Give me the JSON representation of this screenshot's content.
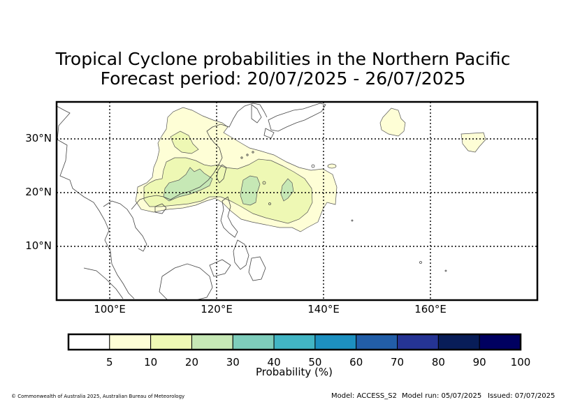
{
  "title_line1": "Tropical Cyclone probabilities in the Northern Pacific",
  "title_line2": "Forecast period: 20/07/2025 - 26/07/2025",
  "map": {
    "lon_range": [
      90,
      180
    ],
    "lat_range": [
      0,
      37
    ],
    "lon_ticks": [
      {
        "value": 100,
        "label": "100°E"
      },
      {
        "value": 120,
        "label": "120°E"
      },
      {
        "value": 140,
        "label": "140°E"
      },
      {
        "value": 160,
        "label": "160°E"
      }
    ],
    "lat_ticks": [
      {
        "value": 30,
        "label": "30°N"
      },
      {
        "value": 20,
        "label": "20°N"
      },
      {
        "value": 10,
        "label": "10°N"
      }
    ],
    "gridlines": "dotted"
  },
  "colorbar": {
    "label": "Probability (%)",
    "tick_labels": [
      "5",
      "10",
      "20",
      "30",
      "40",
      "50",
      "60",
      "70",
      "80",
      "90",
      "100"
    ],
    "colors": [
      "#ffffff",
      "#fefed6",
      "#eef8b4",
      "#c6e8b5",
      "#7ecdbb",
      "#42b5c4",
      "#1d90c0",
      "#225ea8",
      "#253494",
      "#081d58",
      "#000060"
    ]
  },
  "probability_regions": [
    {
      "level": "5-10",
      "color": "#fefed6",
      "description": "broad area South China Sea to east of Taiwan, plus small patches near 152°E 33°N and 168°E 29°N"
    },
    {
      "level": "10-20",
      "color": "#eef8b4",
      "description": "South China Sea and east of Luzon Strait"
    },
    {
      "level": "20-30",
      "color": "#c6e8b5",
      "description": "patches near northern South China Sea and east of Taiwan"
    }
  ],
  "footer": {
    "copyright": "© Commonwealth of Australia 2025, Australian Bureau of Meteorology",
    "model": "Model: ACCESS_S2",
    "model_run": "Model run: 05/07/2025",
    "issued": "Issued: 07/07/2025"
  }
}
